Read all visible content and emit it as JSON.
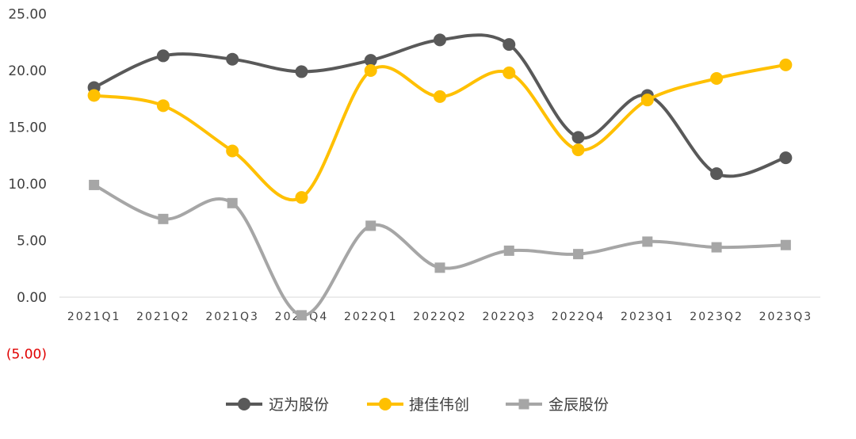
{
  "chart_data": {
    "type": "line",
    "smooth": true,
    "categories": [
      "2021Q1",
      "2021Q2",
      "2021Q3",
      "2021Q4",
      "2022Q1",
      "2022Q2",
      "2022Q3",
      "2022Q4",
      "2023Q1",
      "2023Q2",
      "2023Q3"
    ],
    "series": [
      {
        "name": "迈为股份",
        "color": "#595959",
        "marker": "circle",
        "values": [
          18.5,
          21.3,
          21.0,
          19.9,
          20.9,
          22.7,
          22.3,
          14.1,
          17.8,
          10.9,
          12.3
        ]
      },
      {
        "name": "捷佳伟创",
        "color": "#ffc000",
        "marker": "circle",
        "values": [
          17.8,
          16.9,
          12.9,
          8.8,
          20.0,
          17.7,
          19.8,
          13.0,
          17.4,
          19.3,
          20.5
        ]
      },
      {
        "name": "金辰股份",
        "color": "#a6a6a6",
        "marker": "square",
        "values": [
          9.9,
          6.9,
          8.3,
          -1.6,
          6.3,
          2.6,
          4.1,
          3.8,
          4.9,
          4.4,
          4.6
        ]
      }
    ],
    "ylim": [
      -5,
      25
    ],
    "yticks": [
      {
        "value": 25,
        "label": "25.00"
      },
      {
        "value": 20,
        "label": "20.00"
      },
      {
        "value": 15,
        "label": "15.00"
      },
      {
        "value": 10,
        "label": "10.00"
      },
      {
        "value": 5,
        "label": "5.00"
      },
      {
        "value": 0,
        "label": "0.00"
      },
      {
        "value": -5,
        "label": "(5.00)",
        "color": "#e00000"
      }
    ],
    "grid": false,
    "legend_position": "bottom",
    "title": "",
    "xlabel": "",
    "ylabel": ""
  }
}
